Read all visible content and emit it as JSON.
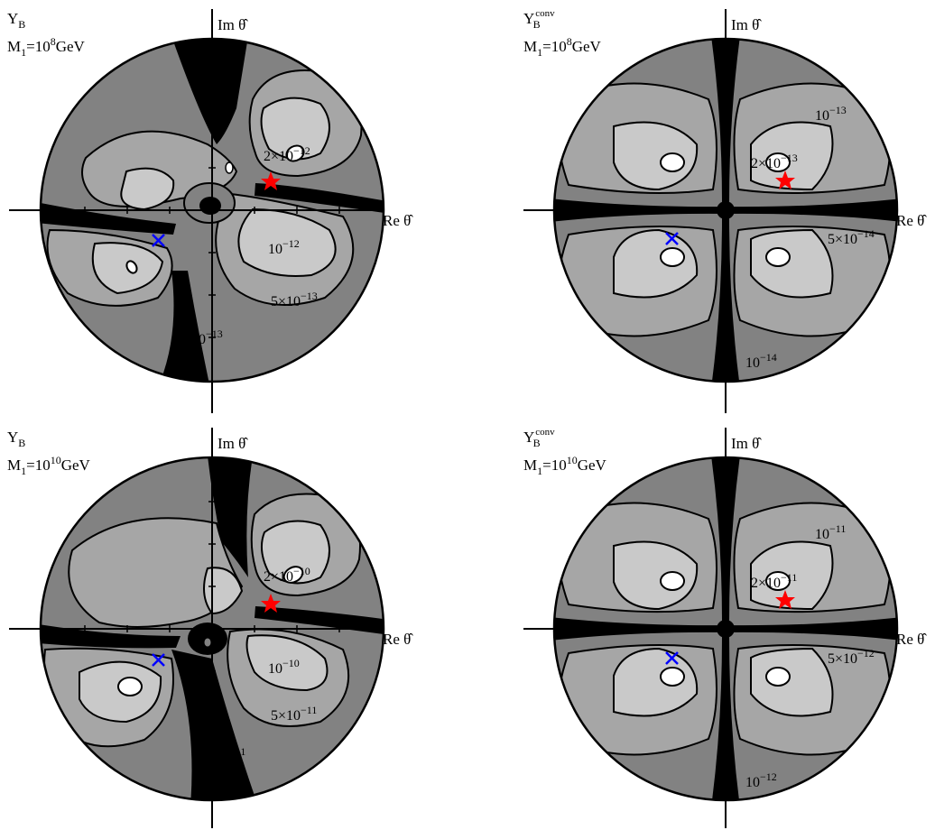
{
  "figure": {
    "panels": [
      {
        "id": "top-left",
        "variable": "Y",
        "variable_sub": "B",
        "variable_sup": "",
        "mass_label": "M",
        "mass_sub": "1",
        "mass_eq": "=10",
        "mass_exp": "8",
        "mass_unit": "GeV",
        "axis_im": "Im θ̂",
        "axis_re": "Re θ̂",
        "contour_labels": [
          {
            "base": "2×10",
            "exp": "−12"
          },
          {
            "base": "10",
            "exp": "−12"
          },
          {
            "base": "5×10",
            "exp": "−13"
          },
          {
            "base": "10",
            "exp": "−13"
          }
        ],
        "markers": [
          "star",
          "cross"
        ]
      },
      {
        "id": "top-right",
        "variable": "Y",
        "variable_sub": "B",
        "variable_sup": "conv",
        "mass_label": "M",
        "mass_sub": "1",
        "mass_eq": "=10",
        "mass_exp": "8",
        "mass_unit": "GeV",
        "axis_im": "Im θ̂",
        "axis_re": "Re θ̂",
        "contour_labels": [
          {
            "base": "10",
            "exp": "−13"
          },
          {
            "base": "2×10",
            "exp": "−13"
          },
          {
            "base": "5×10",
            "exp": "−14"
          },
          {
            "base": "10",
            "exp": "−14"
          }
        ],
        "markers": [
          "star",
          "cross"
        ]
      },
      {
        "id": "bottom-left",
        "variable": "Y",
        "variable_sub": "B",
        "variable_sup": "",
        "mass_label": "M",
        "mass_sub": "1",
        "mass_eq": "=10",
        "mass_exp": "10",
        "mass_unit": "GeV",
        "axis_im": "Im θ̂",
        "axis_re": "Re θ̂",
        "contour_labels": [
          {
            "base": "2×10",
            "exp": "−10"
          },
          {
            "base": "10",
            "exp": "−10"
          },
          {
            "base": "5×10",
            "exp": "−11"
          },
          {
            "base": "10",
            "exp": "−11"
          }
        ],
        "markers": [
          "star",
          "cross"
        ]
      },
      {
        "id": "bottom-right",
        "variable": "Y",
        "variable_sub": "B",
        "variable_sup": "conv",
        "mass_label": "M",
        "mass_sub": "1",
        "mass_eq": "=10",
        "mass_exp": "10",
        "mass_unit": "GeV",
        "axis_im": "Im θ̂",
        "axis_re": "Re θ̂",
        "contour_labels": [
          {
            "base": "10",
            "exp": "−11"
          },
          {
            "base": "2×10",
            "exp": "−11"
          },
          {
            "base": "5×10",
            "exp": "−12"
          },
          {
            "base": "10",
            "exp": "−12"
          }
        ],
        "markers": [
          "star",
          "cross"
        ]
      }
    ],
    "colors": {
      "darkest": "#000000",
      "dark": "#828282",
      "mid": "#a6a6a6",
      "light": "#c9c9c9",
      "lightest": "#ffffff",
      "star": "#ff0000",
      "cross": "#0000ff"
    }
  }
}
